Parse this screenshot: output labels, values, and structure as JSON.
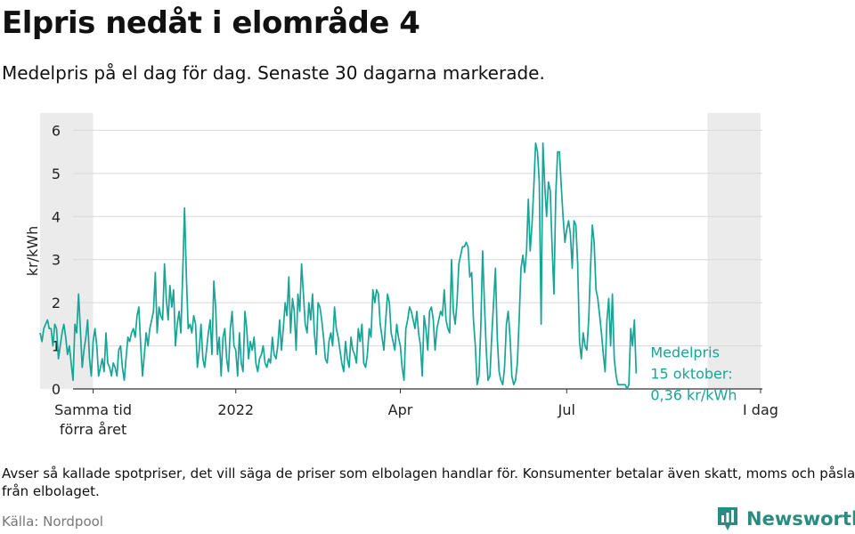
{
  "title": "Elpris nedåt i elområde 4",
  "subtitle": "Medelpris på el dag för dag.  Senaste 30 dagarna markerade.",
  "footnote": "Avser så kallade spotpriser, det vill säga de priser som elbolagen handlar för. Konsumenter betalar även skatt, moms och påslag från elbolaget.",
  "source": "Källa: Nordpool",
  "logo": {
    "text": "Newsworthy",
    "icon": "newsworthy-logo-icon",
    "color": "#2a8b80"
  },
  "colors": {
    "line": "#16a596",
    "shade": "#ebebeb",
    "grid": "#d9d9d9",
    "axis": "#333333"
  },
  "chart_data": {
    "type": "line",
    "ylabel": "kr/kWh",
    "ylim": [
      0,
      6.4
    ],
    "yticks": [
      0,
      1,
      2,
      3,
      4,
      5,
      6
    ],
    "grid": true,
    "x_range": [
      "2021-10-04",
      "2022-10-16"
    ],
    "xticks": [
      {
        "date": "2021-10-15",
        "label": "Samma tid\nförra året"
      },
      {
        "date": "2022-01-01",
        "label": "2022"
      },
      {
        "date": "2022-04-01",
        "label": "Apr"
      },
      {
        "date": "2022-07-01",
        "label": "Jul"
      },
      {
        "date": "2022-10-15",
        "label": "I dag"
      }
    ],
    "highlight_periods": [
      [
        "2021-09-16",
        "2021-10-15"
      ],
      [
        "2022-09-16",
        "2022-10-15"
      ]
    ],
    "annotation": "Medelpris\n15 oktober:\n0,36 kr/kWh",
    "series": [
      {
        "x_start": "2021-09-16",
        "values": [
          1.3,
          1.1,
          1.4,
          1.5,
          1.6,
          1.4,
          1.4,
          1.0,
          1.5,
          1.4,
          0.7,
          1.0,
          1.3,
          1.5,
          1.2,
          0.8,
          1.0,
          0.6,
          0.2,
          1.5,
          1.3,
          2.2,
          1.4,
          0.5,
          0.9,
          1.2,
          1.6,
          0.7,
          0.3,
          1.1,
          1.4,
          1.0,
          0.3,
          0.5,
          0.7,
          0.4,
          1.3,
          0.6,
          0.5,
          0.3,
          0.6,
          0.5,
          0.3,
          0.9,
          1.0,
          0.5,
          0.2,
          0.7,
          1.2,
          1.1,
          1.3,
          1.4,
          1.2,
          1.7,
          1.9,
          1.0,
          0.3,
          0.8,
          1.3,
          1.0,
          1.4,
          1.6,
          1.8,
          2.7,
          1.3,
          1.9,
          1.7,
          1.6,
          2.9,
          2.1,
          1.6,
          2.4,
          1.9,
          2.3,
          1.0,
          1.5,
          1.8,
          1.3,
          2.7,
          4.2,
          2.6,
          1.4,
          1.5,
          1.3,
          1.7,
          1.5,
          0.5,
          0.9,
          1.5,
          0.7,
          0.5,
          0.9,
          1.3,
          1.6,
          0.8,
          2.5,
          1.9,
          0.8,
          1.2,
          0.3,
          1.2,
          1.4,
          0.7,
          0.4,
          1.4,
          1.8,
          1.0,
          0.9,
          0.3,
          1.3,
          0.6,
          0.4,
          1.8,
          1.4,
          0.7,
          1.1,
          0.9,
          1.2,
          0.6,
          0.4,
          0.7,
          0.8,
          1.0,
          0.6,
          0.5,
          0.7,
          0.6,
          1.2,
          0.8,
          0.7,
          1.0,
          1.6,
          0.9,
          1.4,
          2.0,
          1.7,
          2.6,
          1.3,
          2.1,
          1.8,
          0.9,
          2.2,
          1.8,
          2.9,
          2.2,
          1.5,
          1.3,
          2.0,
          1.6,
          2.2,
          1.3,
          0.8,
          2.0,
          1.9,
          1.6,
          1.2,
          0.7,
          0.6,
          1.1,
          1.3,
          1.0,
          1.9,
          1.4,
          1.2,
          0.9,
          0.6,
          0.4,
          1.1,
          0.7,
          0.5,
          1.2,
          0.9,
          0.8,
          0.6,
          1.4,
          1.1,
          1.5,
          0.6,
          0.5,
          0.8,
          1.4,
          1.2,
          2.3,
          2.0,
          2.3,
          2.2,
          1.5,
          1.2,
          0.9,
          1.6,
          2.2,
          2.0,
          1.3,
          1.1,
          0.9,
          1.5,
          1.2,
          1.0,
          0.5,
          0.2,
          1.4,
          1.6,
          1.9,
          1.8,
          1.6,
          1.4,
          1.8,
          1.3,
          1.0,
          0.3,
          1.7,
          1.4,
          0.9,
          1.8,
          1.9,
          1.6,
          0.9,
          1.4,
          1.6,
          1.8,
          1.7,
          2.3,
          1.6,
          1.4,
          1.3,
          3.0,
          1.8,
          1.5,
          2.0,
          2.9,
          3.1,
          3.3,
          3.3,
          3.4,
          3.3,
          2.6,
          2.7,
          1.6,
          1.0,
          0.1,
          0.3,
          1.4,
          3.2,
          2.0,
          0.9,
          0.2,
          0.3,
          1.2,
          2.0,
          2.8,
          1.2,
          0.4,
          0.2,
          0.1,
          0.5,
          1.5,
          1.8,
          1.2,
          0.3,
          0.1,
          0.2,
          0.6,
          1.6,
          2.8,
          3.1,
          2.7,
          3.2,
          4.4,
          3.2,
          3.8,
          4.7,
          5.7,
          5.5,
          4.8,
          1.5,
          5.7,
          4.7,
          4.0,
          4.8,
          4.6,
          3.3,
          2.2,
          4.5,
          5.5,
          5.5,
          4.7,
          4.0,
          3.4,
          3.7,
          3.9,
          3.6,
          2.8,
          3.9,
          3.8,
          2.9,
          1.1,
          0.7,
          1.3,
          1.0,
          0.9,
          1.6,
          2.8,
          3.8,
          3.4,
          2.3,
          2.1,
          1.7,
          1.3,
          0.8,
          0.4,
          1.6,
          2.1,
          1.0,
          2.2,
          0.7,
          0.3,
          0.1,
          0.1,
          0.1,
          0.1,
          0.1,
          0.0,
          0.1,
          1.4,
          1.0,
          1.6,
          0.36
        ]
      }
    ]
  }
}
